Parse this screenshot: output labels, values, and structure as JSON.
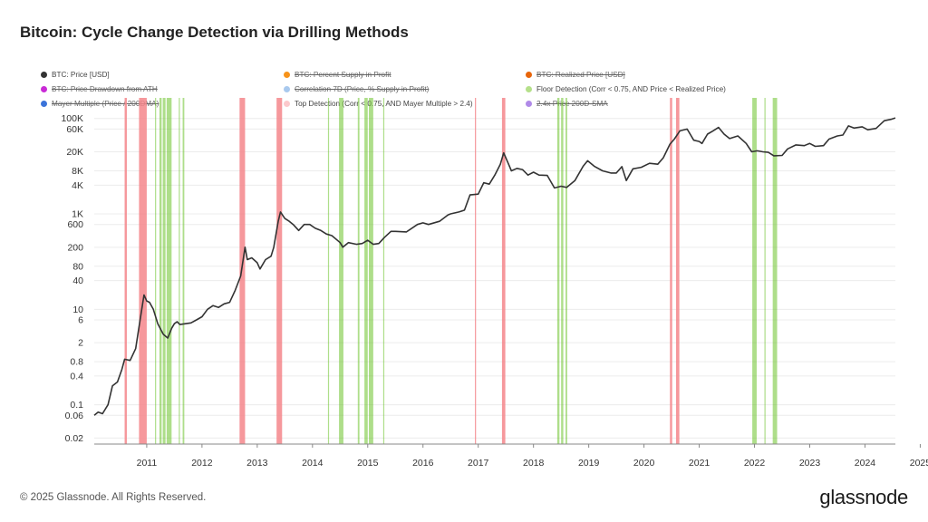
{
  "header": {
    "title": "Bitcoin: Cycle Change Detection via Drilling Methods"
  },
  "legend": [
    {
      "label": "BTC: Price [USD]",
      "color": "#333333",
      "active": true
    },
    {
      "label": "BTC: Percent Supply in Profit",
      "color": "#f7931a",
      "active": false
    },
    {
      "label": "BTC: Realized Price [USD]",
      "color": "#e8650a",
      "active": false
    },
    {
      "label": "BTC: Price Drawdown from ATH",
      "color": "#c92bd6",
      "active": false
    },
    {
      "label": "Correlation 7D (Price, % Supply in Profit)",
      "color": "#a9c9ee",
      "active": false
    },
    {
      "label": "Floor Detection (Corr < 0.75, AND Price < Realized Price)",
      "color": "#b5e08a",
      "active": true
    },
    {
      "label": "Mayer Multiple (Price / 200DMA)",
      "color": "#3b73d9",
      "active": false
    },
    {
      "label": "Top Detection (Corr < 0.75, AND Mayer Multiple > 2.4)",
      "color": "#fcc9cc",
      "active": true
    },
    {
      "label": "2.4x Price 200D-SMA",
      "color": "#b08ae8",
      "active": false
    }
  ],
  "footer": {
    "copyright": "© 2025 Glassnode. All Rights Reserved.",
    "brand": "glassnode"
  },
  "chart_data": {
    "type": "line",
    "title": "Bitcoin: Cycle Change Detection via Drilling Methods",
    "xlabel": "",
    "ylabel": "",
    "y_scale": "log",
    "xlim": [
      2010.55,
      2025.05
    ],
    "ylim": [
      0.015,
      160000
    ],
    "x_ticks": [
      "2011",
      "2012",
      "2013",
      "2014",
      "2015",
      "2016",
      "2017",
      "2018",
      "2019",
      "2020",
      "2021",
      "2022",
      "2023",
      "2024",
      "2025"
    ],
    "y_ticks": [
      {
        "value": 0.02,
        "label": "0.02"
      },
      {
        "value": 0.06,
        "label": "0.06"
      },
      {
        "value": 0.1,
        "label": "0.1"
      },
      {
        "value": 0.4,
        "label": "0.4"
      },
      {
        "value": 0.8,
        "label": "0.8"
      },
      {
        "value": 2,
        "label": "2"
      },
      {
        "value": 6,
        "label": "6"
      },
      {
        "value": 10,
        "label": "10"
      },
      {
        "value": 40,
        "label": "40"
      },
      {
        "value": 80,
        "label": "80"
      },
      {
        "value": 200,
        "label": "200"
      },
      {
        "value": 600,
        "label": "600"
      },
      {
        "value": 1000,
        "label": "1K"
      },
      {
        "value": 4000,
        "label": "4K"
      },
      {
        "value": 8000,
        "label": "8K"
      },
      {
        "value": 20000,
        "label": "20K"
      },
      {
        "value": 60000,
        "label": "60K"
      },
      {
        "value": 100000,
        "label": "100K"
      }
    ],
    "series": [
      {
        "name": "BTC: Price [USD]",
        "color": "#333333",
        "points": [
          [
            2010.55,
            0.06
          ],
          [
            2010.62,
            0.07
          ],
          [
            2010.7,
            0.065
          ],
          [
            2010.8,
            0.1
          ],
          [
            2010.88,
            0.25
          ],
          [
            2010.97,
            0.3
          ],
          [
            2011.05,
            0.55
          ],
          [
            2011.1,
            0.9
          ],
          [
            2011.2,
            0.85
          ],
          [
            2011.3,
            1.5
          ],
          [
            2011.38,
            6
          ],
          [
            2011.45,
            20
          ],
          [
            2011.5,
            15
          ],
          [
            2011.55,
            14
          ],
          [
            2011.62,
            10
          ],
          [
            2011.7,
            5
          ],
          [
            2011.8,
            3
          ],
          [
            2011.88,
            2.5
          ],
          [
            2011.95,
            4
          ],
          [
            2012.0,
            5
          ],
          [
            2012.05,
            5.5
          ],
          [
            2012.1,
            4.8
          ],
          [
            2012.2,
            5
          ],
          [
            2012.3,
            5.2
          ],
          [
            2012.4,
            6
          ],
          [
            2012.5,
            7
          ],
          [
            2012.6,
            10
          ],
          [
            2012.7,
            12
          ],
          [
            2012.8,
            11
          ],
          [
            2012.9,
            13
          ],
          [
            2013.0,
            14
          ],
          [
            2013.1,
            25
          ],
          [
            2013.2,
            50
          ],
          [
            2013.28,
            200
          ],
          [
            2013.32,
            110
          ],
          [
            2013.4,
            120
          ],
          [
            2013.5,
            95
          ],
          [
            2013.55,
            70
          ],
          [
            2013.65,
            110
          ],
          [
            2013.75,
            130
          ],
          [
            2013.8,
            200
          ],
          [
            2013.88,
            700
          ],
          [
            2013.92,
            1100
          ],
          [
            2014.0,
            800
          ],
          [
            2014.08,
            700
          ],
          [
            2014.15,
            600
          ],
          [
            2014.25,
            450
          ],
          [
            2014.35,
            600
          ],
          [
            2014.45,
            600
          ],
          [
            2014.55,
            500
          ],
          [
            2014.65,
            450
          ],
          [
            2014.75,
            380
          ],
          [
            2014.85,
            350
          ],
          [
            2015.0,
            250
          ],
          [
            2015.05,
            200
          ],
          [
            2015.15,
            250
          ],
          [
            2015.3,
            230
          ],
          [
            2015.4,
            240
          ],
          [
            2015.5,
            280
          ],
          [
            2015.6,
            230
          ],
          [
            2015.7,
            240
          ],
          [
            2015.8,
            320
          ],
          [
            2015.92,
            430
          ],
          [
            2016.0,
            430
          ],
          [
            2016.2,
            420
          ],
          [
            2016.4,
            600
          ],
          [
            2016.5,
            650
          ],
          [
            2016.6,
            600
          ],
          [
            2016.8,
            700
          ],
          [
            2016.95,
            950
          ],
          [
            2017.0,
            1000
          ],
          [
            2017.15,
            1100
          ],
          [
            2017.25,
            1200
          ],
          [
            2017.35,
            2500
          ],
          [
            2017.5,
            2600
          ],
          [
            2017.6,
            4500
          ],
          [
            2017.7,
            4200
          ],
          [
            2017.8,
            6500
          ],
          [
            2017.9,
            11000
          ],
          [
            2017.96,
            19000
          ],
          [
            2018.05,
            11000
          ],
          [
            2018.1,
            8000
          ],
          [
            2018.2,
            9000
          ],
          [
            2018.3,
            8500
          ],
          [
            2018.4,
            6500
          ],
          [
            2018.5,
            7500
          ],
          [
            2018.6,
            6500
          ],
          [
            2018.75,
            6400
          ],
          [
            2018.88,
            3500
          ],
          [
            2019.0,
            3800
          ],
          [
            2019.1,
            3600
          ],
          [
            2019.25,
            5000
          ],
          [
            2019.4,
            10000
          ],
          [
            2019.48,
            13000
          ],
          [
            2019.6,
            10000
          ],
          [
            2019.75,
            8000
          ],
          [
            2019.9,
            7200
          ],
          [
            2020.0,
            7200
          ],
          [
            2020.1,
            9800
          ],
          [
            2020.18,
            5000
          ],
          [
            2020.3,
            8800
          ],
          [
            2020.45,
            9500
          ],
          [
            2020.6,
            11500
          ],
          [
            2020.75,
            11000
          ],
          [
            2020.85,
            15000
          ],
          [
            2020.97,
            29000
          ],
          [
            2021.05,
            37000
          ],
          [
            2021.15,
            55000
          ],
          [
            2021.28,
            60000
          ],
          [
            2021.4,
            35000
          ],
          [
            2021.5,
            33000
          ],
          [
            2021.55,
            30000
          ],
          [
            2021.65,
            47000
          ],
          [
            2021.75,
            55000
          ],
          [
            2021.85,
            65000
          ],
          [
            2021.95,
            47000
          ],
          [
            2022.05,
            38000
          ],
          [
            2022.2,
            43000
          ],
          [
            2022.35,
            30000
          ],
          [
            2022.45,
            20000
          ],
          [
            2022.55,
            21000
          ],
          [
            2022.65,
            20000
          ],
          [
            2022.75,
            19500
          ],
          [
            2022.85,
            16500
          ],
          [
            2023.0,
            16800
          ],
          [
            2023.1,
            23000
          ],
          [
            2023.25,
            28000
          ],
          [
            2023.4,
            27000
          ],
          [
            2023.5,
            30000
          ],
          [
            2023.6,
            26000
          ],
          [
            2023.75,
            27000
          ],
          [
            2023.85,
            37000
          ],
          [
            2024.0,
            43000
          ],
          [
            2024.1,
            45000
          ],
          [
            2024.2,
            70000
          ],
          [
            2024.3,
            63000
          ],
          [
            2024.45,
            67000
          ],
          [
            2024.55,
            58000
          ],
          [
            2024.7,
            62000
          ],
          [
            2024.85,
            90000
          ],
          [
            2024.97,
            96000
          ],
          [
            2025.05,
            103000
          ]
        ]
      }
    ],
    "top_detection": [
      [
        2011.1,
        2011.14
      ],
      [
        2011.36,
        2011.5
      ],
      [
        2013.18,
        2013.28
      ],
      [
        2013.85,
        2013.95
      ],
      [
        2017.44,
        2017.46
      ],
      [
        2017.93,
        2017.99
      ],
      [
        2020.97,
        2021.01
      ],
      [
        2021.08,
        2021.14
      ]
    ],
    "floor_detection": [
      [
        2011.65,
        2011.67
      ],
      [
        2011.73,
        2011.77
      ],
      [
        2011.79,
        2011.84
      ],
      [
        2011.86,
        2011.95
      ],
      [
        2012.08,
        2012.1
      ],
      [
        2012.15,
        2012.18
      ],
      [
        2014.78,
        2014.8
      ],
      [
        2014.98,
        2015.06
      ],
      [
        2015.32,
        2015.35
      ],
      [
        2015.44,
        2015.5
      ],
      [
        2015.52,
        2015.6
      ],
      [
        2015.78,
        2015.8
      ],
      [
        2018.93,
        2018.97
      ],
      [
        2019.0,
        2019.04
      ],
      [
        2019.08,
        2019.11
      ],
      [
        2022.46,
        2022.54
      ],
      [
        2022.68,
        2022.7
      ],
      [
        2022.83,
        2022.91
      ]
    ]
  }
}
